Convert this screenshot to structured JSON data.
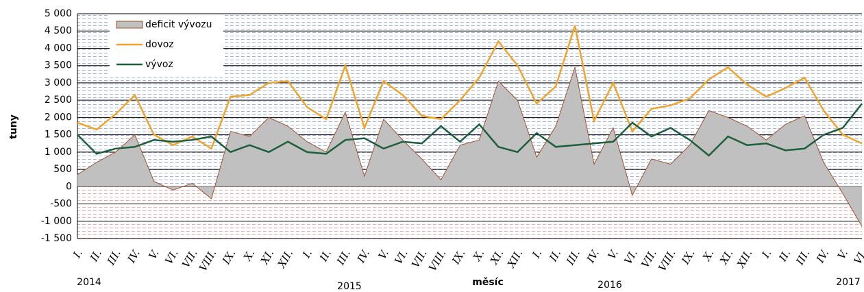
{
  "chart_data": {
    "type": "line",
    "x_label": "měsíc",
    "y_label": "tuny",
    "categories": [
      "I.",
      "II.",
      "III.",
      "IV.",
      "V.",
      "VI.",
      "VII.",
      "VIII.",
      "IX.",
      "X.",
      "XI.",
      "XII.",
      "I.",
      "II.",
      "III.",
      "IV.",
      "V.",
      "VI.",
      "VII.",
      "VIII.",
      "IX.",
      "X.",
      "XI.",
      "XII.",
      "I.",
      "II.",
      "III.",
      "IV.",
      "V.",
      "VI.",
      "VII.",
      "VIII.",
      "IX.",
      "X.",
      "XI.",
      "XII.",
      "I.",
      "II.",
      "III.",
      "IV.",
      "V.",
      "VI."
    ],
    "year_labels": [
      "2014",
      "2015",
      "2016",
      "2017"
    ],
    "series": [
      {
        "name": "deficit vývozu",
        "type": "area",
        "color": "#c0c0c0",
        "stroke": "#a0522d",
        "values": [
          350,
          700,
          1000,
          1500,
          150,
          -100,
          100,
          -350,
          1600,
          1450,
          2000,
          1750,
          1300,
          1000,
          2150,
          300,
          1950,
          1350,
          800,
          200,
          1200,
          1350,
          3050,
          2500,
          850,
          1750,
          3450,
          650,
          1700,
          -250,
          800,
          650,
          1200,
          2200,
          2000,
          1750,
          1350,
          1800,
          2050,
          700,
          -200,
          -1150
        ]
      },
      {
        "name": "dovoz",
        "type": "line",
        "color": "#f0a428",
        "values": [
          1850,
          1650,
          2100,
          2650,
          1500,
          1200,
          1450,
          1100,
          2600,
          2650,
          3000,
          3050,
          2300,
          1950,
          3500,
          1700,
          3050,
          2650,
          2050,
          1950,
          2500,
          3150,
          4200,
          3500,
          2400,
          2900,
          4650,
          1900,
          3000,
          1600,
          2250,
          2350,
          2550,
          3100,
          3450,
          2950,
          2600,
          2850,
          3150,
          2200,
          1500,
          1250
        ]
      },
      {
        "name": "vývoz",
        "type": "line",
        "color": "#1d5e3b",
        "values": [
          1500,
          950,
          1100,
          1150,
          1350,
          1300,
          1350,
          1450,
          1000,
          1200,
          1000,
          1300,
          1000,
          950,
          1350,
          1400,
          1100,
          1300,
          1250,
          1750,
          1300,
          1800,
          1150,
          1000,
          1550,
          1150,
          1200,
          1250,
          1300,
          1850,
          1450,
          1700,
          1350,
          900,
          1450,
          1200,
          1250,
          1050,
          1100,
          1500,
          1700,
          2400
        ]
      }
    ],
    "ylim": [
      -1500,
      5000
    ],
    "yticks": [
      {
        "value": -1500,
        "label": "-1 500"
      },
      {
        "value": -1000,
        "label": "-1 000"
      },
      -500,
      0,
      500,
      {
        "value": 1000,
        "label": "1 000"
      },
      {
        "value": 1500,
        "label": "1 500"
      },
      {
        "value": 2000,
        "label": "2 000"
      },
      {
        "value": 2500,
        "label": "2 500"
      },
      {
        "value": 3000,
        "label": "3 000"
      },
      {
        "value": 3500,
        "label": "3 500"
      },
      {
        "value": 4000,
        "label": "4 000"
      },
      {
        "value": 4500,
        "label": "4 500"
      },
      {
        "value": 5000,
        "label": "5 000"
      }
    ],
    "grid": true,
    "legend": "top-left"
  }
}
